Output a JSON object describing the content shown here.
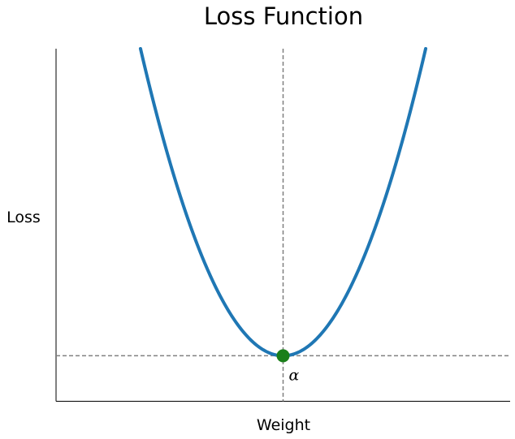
{
  "chart_data": {
    "type": "line",
    "title": "Loss Function",
    "xlabel": "Weight",
    "ylabel": "Loss",
    "xlim": [
      -5,
      5
    ],
    "ylim": [
      -1,
      6.75
    ],
    "curve": {
      "function": "quadratic",
      "vertex": [
        0,
        0
      ],
      "x": [
        -3.14,
        -3,
        -2.5,
        -2,
        -1.5,
        -1,
        -0.5,
        0,
        0.5,
        1,
        1.5,
        2,
        2.5,
        3,
        3.14
      ],
      "y": [
        6.75,
        6.16,
        4.28,
        2.74,
        1.54,
        0.68,
        0.17,
        0,
        0.17,
        0.68,
        1.54,
        2.74,
        4.28,
        6.16,
        6.75
      ],
      "color": "#1f77b4"
    },
    "minimum_point": {
      "x": 0,
      "y": 0,
      "label": "α",
      "color": "#1a7f1a"
    },
    "reference_lines": {
      "vertical_x": 0,
      "horizontal_y": 0,
      "style": "dashed",
      "color": "#808080"
    },
    "ticks": "none",
    "grid": false,
    "spines": [
      "left",
      "bottom"
    ]
  }
}
